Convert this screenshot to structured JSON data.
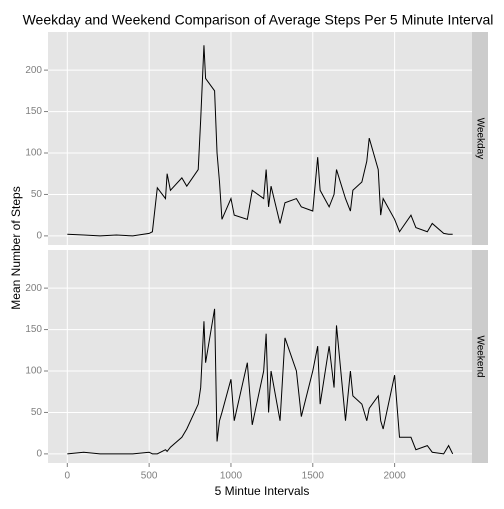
{
  "chart_data": {
    "type": "line",
    "facet": true,
    "title": "Weekday and Weekend Comparison of Average Steps Per 5 Minute Interval",
    "x_label": "5 Mintue Intervals",
    "y_label": "Mean Number of Steps",
    "x": [
      0,
      100,
      200,
      300,
      400,
      500,
      520,
      550,
      600,
      610,
      630,
      700,
      730,
      800,
      815,
      835,
      845,
      900,
      915,
      930,
      945,
      1000,
      1020,
      1100,
      1130,
      1200,
      1215,
      1230,
      1245,
      1300,
      1330,
      1400,
      1430,
      1500,
      1530,
      1545,
      1600,
      1630,
      1645,
      1700,
      1730,
      1745,
      1800,
      1830,
      1845,
      1900,
      1915,
      1930,
      2000,
      2030,
      2100,
      2130,
      2200,
      2230,
      2300,
      2330,
      2355
    ],
    "series": [
      {
        "name": "Weekday",
        "color": "#000000",
        "values": [
          2,
          1,
          0,
          1,
          0,
          3,
          5,
          58,
          45,
          75,
          55,
          70,
          60,
          80,
          140,
          230,
          190,
          175,
          100,
          65,
          20,
          45,
          25,
          20,
          55,
          45,
          80,
          35,
          60,
          15,
          40,
          45,
          35,
          30,
          95,
          55,
          35,
          50,
          80,
          45,
          30,
          55,
          65,
          90,
          118,
          80,
          25,
          45,
          20,
          5,
          25,
          10,
          5,
          15,
          3,
          2,
          2
        ]
      },
      {
        "name": "Weekend",
        "color": "#000000",
        "values": [
          0,
          2,
          0,
          0,
          0,
          2,
          0,
          0,
          5,
          3,
          8,
          20,
          30,
          60,
          80,
          160,
          110,
          175,
          15,
          40,
          50,
          90,
          40,
          110,
          35,
          100,
          145,
          50,
          100,
          40,
          140,
          100,
          45,
          100,
          130,
          60,
          130,
          80,
          155,
          40,
          100,
          70,
          60,
          40,
          55,
          70,
          40,
          30,
          95,
          20,
          20,
          5,
          10,
          2,
          0,
          10,
          0
        ]
      }
    ],
    "xlim": [
      -118,
      2473
    ],
    "xticks": [
      0,
      500,
      1000,
      1500,
      2000
    ],
    "ylim": [
      -11,
      246
    ],
    "yticks": [
      0,
      50,
      100,
      150,
      200
    ],
    "grid": true
  }
}
